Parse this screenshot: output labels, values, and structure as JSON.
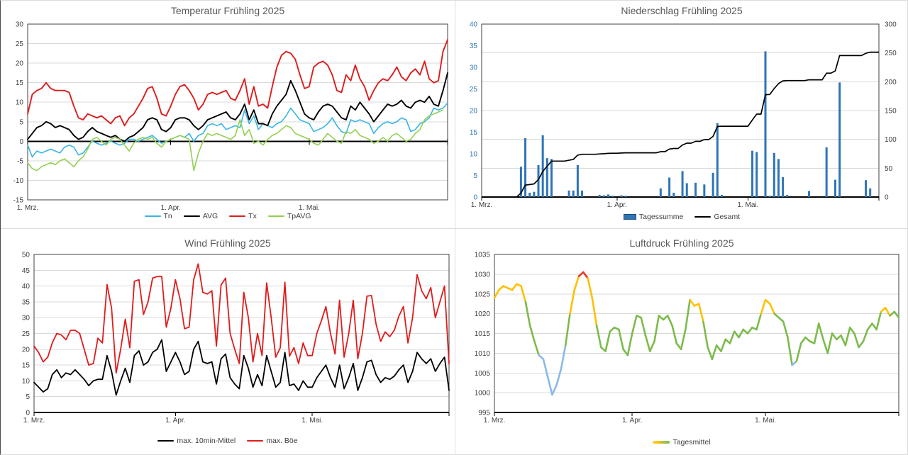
{
  "charts": [
    {
      "title": "Temperatur Frühling 2025",
      "days": 92,
      "y_axis": {
        "min": -15,
        "max": 30,
        "step": 5,
        "color": "#3f3f3f",
        "labels": [
          "30",
          "25",
          "20",
          "15",
          "10",
          "5",
          "0",
          "-5",
          "-10",
          "-15"
        ]
      },
      "x_axis": {
        "on_zero": true,
        "tick_mark_days": [
          0,
          31,
          61,
          91
        ],
        "ticks": [
          {
            "day": 0,
            "label": "1. Mrz."
          },
          {
            "day": 31,
            "label": "1. Apr."
          },
          {
            "day": 61,
            "label": "1. Mai."
          }
        ]
      },
      "series": [
        {
          "name": "Tn",
          "type": "line",
          "color": "#38b5e6",
          "values": [
            -1,
            -4,
            -2.5,
            -3,
            -2.5,
            -2,
            -2.5,
            -3,
            -1.5,
            -1,
            -1.5,
            -3.5,
            -3,
            -1.5,
            0,
            -0.5,
            -1,
            -0.5,
            0,
            -0.5,
            -1,
            -0.5,
            0.5,
            0.5,
            0,
            0.5,
            1,
            1.5,
            0.5,
            -0.5,
            0,
            0.5,
            1,
            1.5,
            1,
            2,
            0,
            1.5,
            2,
            4,
            4.5,
            4,
            4.5,
            3,
            3.5,
            4,
            3.5,
            8,
            4.5,
            6.5,
            3,
            4.5,
            4,
            3.5,
            4.5,
            5,
            6.5,
            8.5,
            7,
            5.5,
            5,
            4.5,
            2.5,
            3,
            3.5,
            4.5,
            6,
            4,
            2.5,
            2,
            5.5,
            5,
            5.5,
            5,
            4.5,
            2,
            3.5,
            4.5,
            5,
            4.5,
            5,
            6,
            5.5,
            2.5,
            3,
            4.5,
            5,
            6,
            8.5,
            8,
            8.5,
            9.8
          ]
        },
        {
          "name": "AVG",
          "type": "line",
          "color": "#000000",
          "values": [
            0.5,
            2,
            3.5,
            4,
            5,
            4.5,
            3.5,
            4,
            3.5,
            3,
            1.5,
            0.5,
            1,
            2.5,
            3.5,
            2.5,
            2,
            1.5,
            1,
            1.5,
            0.5,
            0,
            1,
            1.5,
            2.5,
            3.5,
            5.5,
            6,
            5.5,
            3,
            2.5,
            3.5,
            5.5,
            6,
            6,
            5.5,
            4,
            3,
            4,
            5.5,
            6,
            6.5,
            7,
            7.5,
            6,
            5.5,
            7,
            9.5,
            5.5,
            8,
            4.5,
            4.5,
            4,
            7,
            9,
            10.5,
            12,
            15.5,
            13,
            10,
            7,
            6,
            5.5,
            7.5,
            9,
            9.5,
            9,
            7.5,
            6,
            5.5,
            9,
            8,
            10,
            8.5,
            7,
            5,
            6.5,
            8,
            9.5,
            9,
            9.5,
            10.5,
            9,
            8.5,
            10,
            10.5,
            10,
            11.5,
            9.5,
            9,
            13,
            17.5
          ]
        },
        {
          "name": "Tx",
          "type": "line",
          "color": "#e01b1b",
          "values": [
            7,
            12,
            13,
            13.5,
            15,
            13.5,
            13,
            13,
            13,
            12.5,
            9,
            6,
            5.5,
            7,
            6.5,
            6,
            6.5,
            5.5,
            4.5,
            6,
            6.5,
            4,
            6,
            7,
            9,
            11,
            13.5,
            14,
            11,
            7,
            6.5,
            9,
            12,
            14,
            14.5,
            13,
            11,
            8,
            9.5,
            12,
            12.5,
            12,
            12.5,
            13,
            11,
            10.5,
            13,
            16,
            9.5,
            14,
            9,
            9.5,
            8.5,
            14,
            19,
            22,
            23,
            22.5,
            21,
            17,
            13.5,
            14,
            19,
            20,
            20.5,
            19.5,
            17,
            13,
            12.5,
            17,
            15.5,
            19.5,
            16,
            14,
            10.5,
            13,
            15,
            16,
            15.5,
            17,
            19,
            16.5,
            15.5,
            17.5,
            18.5,
            17,
            20.5,
            16,
            15,
            15.5,
            23,
            26
          ]
        },
        {
          "name": "TpAVG",
          "type": "line",
          "color": "#92d050",
          "values": [
            -5.5,
            -7,
            -7.5,
            -6.5,
            -6,
            -5.5,
            -6,
            -5,
            -4.5,
            -5.5,
            -6.5,
            -5,
            -4,
            -2,
            0.5,
            1,
            0,
            -1,
            0.5,
            1,
            0.5,
            -1,
            -2.5,
            -0.5,
            0.5,
            1,
            0.5,
            1,
            -0.5,
            -1.5,
            0,
            0.5,
            1,
            1.5,
            1,
            0.5,
            -7.5,
            -3,
            0,
            2,
            1.5,
            2,
            1.5,
            1,
            0.5,
            1.5,
            5.5,
            1.5,
            3,
            -0.5,
            0,
            -1,
            0.5,
            1.5,
            2,
            3,
            4,
            3.5,
            2,
            1.5,
            1,
            0.5,
            -0.5,
            -1,
            0.5,
            2,
            1,
            0,
            -0.5,
            2.5,
            2,
            3,
            1.5,
            1,
            0.5,
            -0.5,
            0,
            1,
            0,
            1.5,
            2,
            1,
            0,
            0.5,
            2,
            3,
            5.5,
            6.5,
            7,
            7.5,
            8
          ]
        }
      ]
    },
    {
      "title": "Niederschlag Frühling 2025",
      "days": 92,
      "y_axis": {
        "min": 0,
        "max": 40,
        "step": 5,
        "color": "#2e75b6",
        "labels": [
          "40",
          "35",
          "30",
          "25",
          "20",
          "15",
          "10",
          "5",
          "0"
        ]
      },
      "y2_axis": {
        "min": 0,
        "max": 300,
        "step": 50,
        "color": "#3f3f3f",
        "grid": true,
        "labels": [
          "300",
          "250",
          "200",
          "150",
          "100",
          "50",
          "0"
        ]
      },
      "x_axis": {
        "on_zero": false,
        "tick_mark_days": [
          0,
          31,
          61,
          91
        ],
        "ticks": [
          {
            "day": 0,
            "label": "1. Mrz."
          },
          {
            "day": 31,
            "label": "1. Apr."
          },
          {
            "day": 61,
            "label": "1. Mai."
          }
        ]
      },
      "series": [
        {
          "name": "Tagessumme",
          "type": "bar",
          "color": "#2e75b6",
          "swatch": "bar",
          "values": [
            0,
            0,
            0,
            0,
            0,
            0,
            0,
            0,
            0,
            7,
            13.6,
            1,
            1.2,
            7.4,
            14.3,
            9,
            8.8,
            0,
            0,
            0,
            1.5,
            1.5,
            7.4,
            1.5,
            0,
            0,
            0,
            0.5,
            0.4,
            0.6,
            0.3,
            0,
            0.4,
            0.3,
            0,
            0,
            0,
            0,
            0,
            0,
            0,
            2,
            0,
            4.5,
            1,
            0,
            6,
            3.2,
            0,
            3.3,
            0,
            2.9,
            0,
            5.6,
            17.1,
            0.5,
            0,
            0,
            0,
            0,
            0,
            0,
            10.7,
            10.4,
            0,
            33.7,
            0.3,
            10.2,
            8.8,
            4.6,
            0.5,
            0,
            0,
            0,
            0,
            1.4,
            0,
            0,
            0,
            11.5,
            0,
            4,
            26.5,
            0,
            0,
            0,
            0,
            0,
            3.9,
            2,
            0,
            0
          ]
        },
        {
          "name": "Gesamt",
          "type": "cumulative",
          "source": 0,
          "color": "#000000"
        }
      ]
    },
    {
      "title": "Wind Frühling 2025",
      "days": 92,
      "y_axis": {
        "min": 0,
        "max": 50,
        "step": 5,
        "color": "#3f3f3f",
        "labels": [
          "50",
          "45",
          "40",
          "35",
          "30",
          "25",
          "20",
          "15",
          "10",
          "5",
          "0"
        ]
      },
      "x_axis": {
        "on_zero": false,
        "tick_mark_days": [
          0,
          31,
          61,
          91
        ],
        "ticks": [
          {
            "day": 0,
            "label": "1. Mrz."
          },
          {
            "day": 31,
            "label": "1. Apr."
          },
          {
            "day": 61,
            "label": "1. Mai."
          }
        ]
      },
      "series": [
        {
          "name": "max. 10min-Mittel",
          "type": "line",
          "color": "#000000",
          "values": [
            9.5,
            8,
            6.5,
            7.5,
            12,
            13.5,
            11,
            12.5,
            12,
            13.5,
            12,
            10.5,
            8.5,
            10,
            10.5,
            10.5,
            18,
            13,
            5.5,
            10,
            14,
            9.5,
            18,
            19.5,
            15,
            16,
            19,
            20,
            23,
            13,
            16,
            19,
            16,
            12,
            13,
            20,
            22.5,
            16,
            15.5,
            16,
            9,
            17,
            18.5,
            11,
            9,
            7.5,
            18,
            14,
            8,
            12,
            8.5,
            18,
            13,
            8,
            9.5,
            19,
            8.5,
            9,
            7,
            10,
            8,
            8,
            11,
            13,
            15,
            11,
            8,
            15,
            7.5,
            11,
            15.5,
            7,
            11,
            16,
            16.5,
            12,
            9.5,
            11,
            10.5,
            11.5,
            13.5,
            15,
            9.5,
            13,
            19,
            17,
            15.5,
            17,
            13,
            15.5,
            17.5,
            7
          ]
        },
        {
          "name": "max. Böe",
          "type": "line",
          "color": "#e01b1b",
          "values": [
            21,
            19,
            16,
            17.5,
            22,
            25,
            24.5,
            23,
            26,
            26,
            25,
            20,
            15,
            15.5,
            23.5,
            22,
            40.5,
            33,
            12.5,
            20,
            29.5,
            20.5,
            41.5,
            42,
            31,
            35,
            42.5,
            43,
            43,
            27,
            33,
            42,
            36,
            26.5,
            27,
            42,
            47,
            38,
            37.5,
            38.5,
            21,
            40.3,
            42.5,
            25,
            20,
            15.5,
            38,
            30,
            16,
            25,
            18,
            41,
            30,
            17.5,
            20.5,
            41.2,
            17.8,
            20.5,
            15.5,
            22,
            18,
            18,
            25,
            29,
            33.5,
            25,
            18.5,
            35.5,
            17.5,
            25,
            35.5,
            17,
            25,
            36.8,
            37,
            28,
            22.5,
            25.5,
            24,
            26,
            30.5,
            33.5,
            22,
            30,
            43.6,
            38.5,
            36,
            39.5,
            30,
            35,
            40,
            15.5
          ]
        }
      ]
    },
    {
      "title": "Luftdruck Frühling 2025",
      "days": 92,
      "y_axis": {
        "min": 995,
        "max": 1035,
        "step": 5,
        "color": "#3f3f3f",
        "labels": [
          "1035",
          "1030",
          "1025",
          "1020",
          "1015",
          "1010",
          "1005",
          "1000",
          "995"
        ]
      },
      "x_axis": {
        "on_zero": false,
        "tick_mark_days": [
          0,
          31,
          61,
          91
        ],
        "ticks": [
          {
            "day": 0,
            "label": "1. Mrz."
          },
          {
            "day": 31,
            "label": "1. Apr."
          },
          {
            "day": 61,
            "label": "1. Mai."
          }
        ]
      },
      "series": [
        {
          "name": "Tagesmittel",
          "type": "multiline",
          "swatch": "gradient",
          "color_rules": [
            {
              "gte": 1029,
              "color": "#e03b24"
            },
            {
              "gte": 1020.2,
              "color": "#ffc000"
            },
            {
              "gte": 1009.8,
              "color": "#7cbb4c"
            },
            {
              "gte": -9999,
              "color": "#8ab9e8"
            }
          ],
          "values": [
            1024,
            1026,
            1027,
            1026.5,
            1026,
            1027.5,
            1027,
            1023,
            1017,
            1013,
            1009.5,
            1008.5,
            1004,
            999.5,
            1002,
            1006,
            1012,
            1020,
            1026,
            1029.5,
            1030.5,
            1029,
            1024,
            1017,
            1011.5,
            1010.5,
            1015.5,
            1016.5,
            1016,
            1011,
            1009.5,
            1015,
            1019.5,
            1019,
            1014.5,
            1010.5,
            1013,
            1019.5,
            1018.5,
            1019.5,
            1017,
            1012.5,
            1011,
            1016,
            1023.5,
            1022,
            1022.5,
            1018,
            1011.5,
            1008.5,
            1012,
            1010.5,
            1013.5,
            1012.5,
            1015.5,
            1014,
            1016,
            1015,
            1016.5,
            1016,
            1020,
            1023.5,
            1022.5,
            1020,
            1019,
            1018,
            1014,
            1007,
            1008,
            1012.5,
            1014,
            1013,
            1012.5,
            1017.5,
            1013.5,
            1010,
            1015,
            1013.5,
            1014.5,
            1012,
            1016.5,
            1015,
            1011.5,
            1013,
            1016,
            1017.5,
            1016,
            1020.5,
            1021.5,
            1019.5,
            1020.5,
            1019
          ]
        }
      ]
    }
  ]
}
